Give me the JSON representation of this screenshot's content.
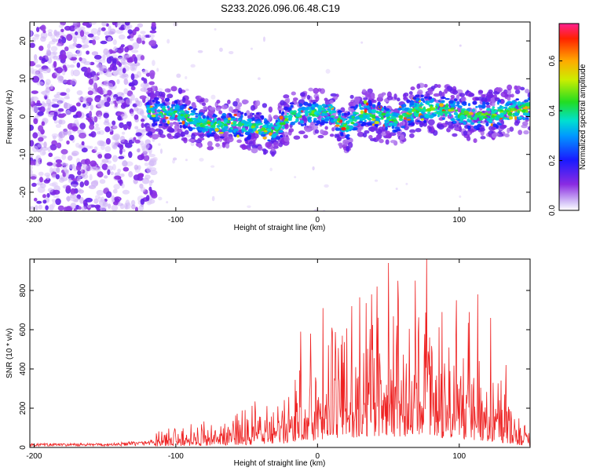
{
  "title": "S233.2026.096.06.48.C19",
  "colors": {
    "snr_line": "#ee2222",
    "background": "#ffffff",
    "frame": "#000000"
  },
  "chart_data": [
    {
      "type": "heatmap",
      "name": "spectrogram",
      "xlabel": "Height of straight line (km)",
      "ylabel": "Frequency (Hz)",
      "xlim": [
        -203,
        150
      ],
      "ylim": [
        -25,
        25
      ],
      "xticks": [
        -200,
        -100,
        0,
        100
      ],
      "yticks": [
        -20,
        -10,
        0,
        10,
        20
      ],
      "colorbar": {
        "label": "Normalized spectral amplitude",
        "range": [
          0.0,
          0.75
        ],
        "ticks": [
          0.0,
          0.2,
          0.4,
          0.6
        ],
        "tick_labels": [
          "0.0",
          "0.2",
          "0.4",
          "0.6"
        ]
      },
      "noise_region_x": [
        -203,
        -115
      ],
      "signal_band_x": [
        -120,
        150
      ],
      "signal_center_hz": [
        [
          -120,
          1
        ],
        [
          -100,
          1
        ],
        [
          -80,
          -2
        ],
        [
          -60,
          -2
        ],
        [
          -40,
          -3
        ],
        [
          -30,
          -4
        ],
        [
          -20,
          0
        ],
        [
          0,
          1
        ],
        [
          10,
          1
        ],
        [
          20,
          -3
        ],
        [
          30,
          1
        ],
        [
          45,
          0
        ],
        [
          55,
          -1
        ],
        [
          70,
          2
        ],
        [
          90,
          2
        ],
        [
          110,
          0
        ],
        [
          130,
          1
        ],
        [
          150,
          2
        ]
      ],
      "signal_halfwidth_hz": 4,
      "peak_amplitude": 0.7
    },
    {
      "type": "line",
      "name": "snr",
      "xlabel": "Height of straight line (km)",
      "ylabel": "SNR (10 * v/v)",
      "xlim": [
        -203,
        150
      ],
      "ylim": [
        0,
        960
      ],
      "xticks": [
        -200,
        -100,
        0,
        100
      ],
      "yticks": [
        0,
        200,
        400,
        600,
        800
      ],
      "series": [
        {
          "name": "SNR",
          "envelope": [
            [
              -203,
              15
            ],
            [
              -150,
              15
            ],
            [
              -120,
              25
            ],
            [
              -110,
              60
            ],
            [
              -100,
              75
            ],
            [
              -80,
              90
            ],
            [
              -60,
              110
            ],
            [
              -40,
              150
            ],
            [
              -30,
              180
            ],
            [
              -20,
              210
            ],
            [
              -10,
              310
            ],
            [
              0,
              360
            ],
            [
              10,
              420
            ],
            [
              20,
              480
            ],
            [
              30,
              510
            ],
            [
              40,
              560
            ],
            [
              50,
              560
            ],
            [
              60,
              540
            ],
            [
              70,
              520
            ],
            [
              80,
              500
            ],
            [
              90,
              470
            ],
            [
              100,
              420
            ],
            [
              110,
              370
            ],
            [
              120,
              320
            ],
            [
              130,
              240
            ],
            [
              140,
              140
            ],
            [
              150,
              60
            ]
          ],
          "peaks": [
            [
              -12,
              590
            ],
            [
              -5,
              580
            ],
            [
              4,
              710
            ],
            [
              10,
              610
            ],
            [
              24,
              720
            ],
            [
              38,
              780
            ],
            [
              50,
              940
            ],
            [
              57,
              750
            ],
            [
              69,
              850
            ],
            [
              77,
              960
            ],
            [
              88,
              690
            ],
            [
              98,
              750
            ],
            [
              107,
              690
            ],
            [
              113,
              780
            ],
            [
              122,
              660
            ],
            [
              133,
              420
            ]
          ]
        }
      ]
    }
  ]
}
